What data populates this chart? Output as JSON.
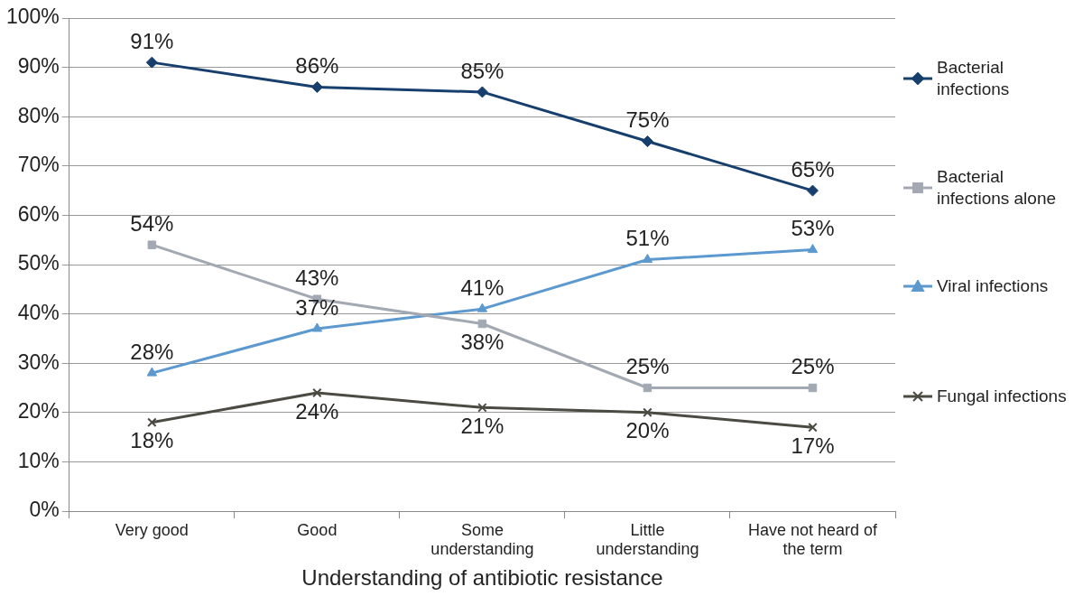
{
  "chart_data": {
    "type": "line",
    "xlabel": "Understanding of antibiotic resistance",
    "categories": [
      "Very good",
      "Good",
      "Some understanding",
      "Little understanding",
      "Have not heard of the term"
    ],
    "series": [
      {
        "name": "Bacterial infections",
        "color": "#173f6d",
        "marker": "diamond",
        "values": [
          91,
          86,
          85,
          75,
          65
        ],
        "value_labels": [
          "91%",
          "86%",
          "85%",
          "75%",
          "65%"
        ]
      },
      {
        "name": "Bacterial infections alone",
        "color": "#a3a9b3",
        "marker": "square",
        "values": [
          54,
          43,
          38,
          25,
          25
        ],
        "value_labels": [
          "54%",
          "43%",
          "38%",
          "25%",
          "25%"
        ]
      },
      {
        "name": "Viral infections",
        "color": "#5c99cf",
        "marker": "triangle",
        "values": [
          28,
          37,
          41,
          51,
          53
        ],
        "value_labels": [
          "28%",
          "37%",
          "41%",
          "51%",
          "53%"
        ]
      },
      {
        "name": "Fungal infections",
        "color": "#4b4a43",
        "marker": "cross",
        "values": [
          18,
          24,
          21,
          20,
          17
        ],
        "value_labels": [
          "18%",
          "24%",
          "21%",
          "20%",
          "17%"
        ]
      }
    ],
    "ylim": [
      0,
      100
    ],
    "yticks": [
      {
        "value": 0,
        "label": "0%"
      },
      {
        "value": 10,
        "label": "10%"
      },
      {
        "value": 20,
        "label": "20%"
      },
      {
        "value": 30,
        "label": "30%"
      },
      {
        "value": 40,
        "label": "40%"
      },
      {
        "value": 50,
        "label": "50%"
      },
      {
        "value": 60,
        "label": "60%"
      },
      {
        "value": 70,
        "label": "70%"
      },
      {
        "value": 80,
        "label": "80%"
      },
      {
        "value": 90,
        "label": "90%"
      },
      {
        "value": 100,
        "label": "100%"
      }
    ],
    "grid": "y",
    "legend": "right",
    "line_style": "solid"
  }
}
